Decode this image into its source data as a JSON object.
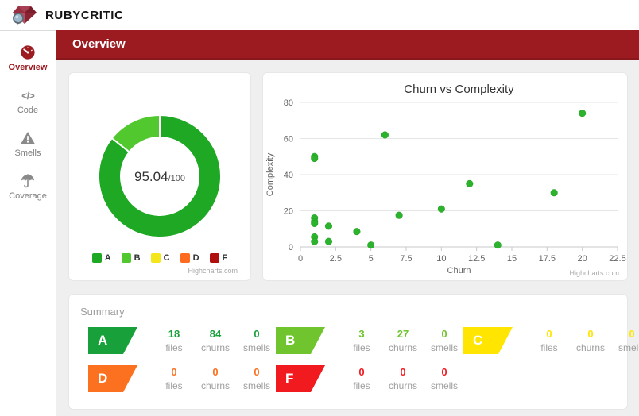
{
  "app": {
    "brand": "RUBYCRITIC"
  },
  "sidebar": {
    "items": [
      {
        "label": "Overview",
        "icon": "gauge-icon",
        "active": true
      },
      {
        "label": "Code",
        "icon": "code-icon",
        "active": false
      },
      {
        "label": "Smells",
        "icon": "warning-icon",
        "active": false
      },
      {
        "label": "Coverage",
        "icon": "umbrella-icon",
        "active": false
      }
    ]
  },
  "header": {
    "title": "Overview"
  },
  "colors": {
    "accent_red": "#9b1b21",
    "grade_a": "#18a03a",
    "grade_b": "#70c42d",
    "grade_c": "#ffe500",
    "grade_d": "#fb7120",
    "grade_f": "#f11a1f",
    "scatter_point": "#2cb22c"
  },
  "chart_data": [
    {
      "type": "pie",
      "subtype": "donut",
      "center_label": "95.04",
      "center_suffix": "/100",
      "slices": [
        {
          "name": "A",
          "value": 18,
          "color": "#1ea824"
        },
        {
          "name": "B",
          "value": 3,
          "color": "#50c82e"
        },
        {
          "name": "C",
          "value": 0,
          "color": "#f3e71b"
        },
        {
          "name": "D",
          "value": 0,
          "color": "#ff6b20"
        },
        {
          "name": "F",
          "value": 0,
          "color": "#b00f10"
        }
      ],
      "legend_position": "bottom",
      "credit": "Highcharts.com"
    },
    {
      "type": "scatter",
      "title": "Churn vs Complexity",
      "xlabel": "Churn",
      "ylabel": "Complexity",
      "xlim": [
        0,
        22.5
      ],
      "ylim": [
        0,
        80
      ],
      "xticks": [
        0,
        2.5,
        5,
        7.5,
        10,
        12.5,
        15,
        17.5,
        20,
        22.5
      ],
      "yticks": [
        0,
        20,
        40,
        60,
        80
      ],
      "grid": "horizontal",
      "points": [
        [
          1,
          50
        ],
        [
          1,
          49
        ],
        [
          1,
          16
        ],
        [
          1,
          14
        ],
        [
          1,
          13
        ],
        [
          1,
          5.5
        ],
        [
          1,
          3
        ],
        [
          2,
          11.5
        ],
        [
          2,
          3
        ],
        [
          4,
          8.5
        ],
        [
          5,
          1
        ],
        [
          6,
          62
        ],
        [
          7,
          17.5
        ],
        [
          10,
          21
        ],
        [
          12,
          35
        ],
        [
          14,
          1
        ],
        [
          18,
          30
        ],
        [
          20,
          74
        ]
      ],
      "credit": "Highcharts.com"
    }
  ],
  "summary": {
    "heading": "Summary",
    "stat_labels": [
      "files",
      "churns",
      "smells"
    ],
    "grades": [
      {
        "grade": "A",
        "color": "#18a03a",
        "files": 18,
        "churns": 84,
        "smells": 0
      },
      {
        "grade": "B",
        "color": "#70c42d",
        "files": 3,
        "churns": 27,
        "smells": 0
      },
      {
        "grade": "C",
        "color": "#ffe500",
        "files": 0,
        "churns": 0,
        "smells": 0
      },
      {
        "grade": "D",
        "color": "#fb7120",
        "files": 0,
        "churns": 0,
        "smells": 0
      },
      {
        "grade": "F",
        "color": "#f11a1f",
        "files": 0,
        "churns": 0,
        "smells": 0
      }
    ]
  }
}
